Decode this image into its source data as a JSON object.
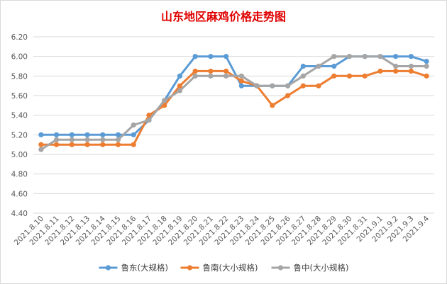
{
  "chart_data": {
    "type": "line",
    "title": "山东地区麻鸡价格走势图",
    "xlabel": "",
    "ylabel": "",
    "categories": [
      "2021.8.10",
      "2021.8.11",
      "2021.8.12",
      "2021.8.13",
      "2021.8.14",
      "2021.8.15",
      "2021.8.16",
      "2021.8.17",
      "2021.8.18",
      "2021.8.19",
      "2021.8.20",
      "2021.8.21",
      "2021.8.22",
      "2021.8.23",
      "2021.8.24",
      "2021.8.25",
      "2021.8.26",
      "2021.8.27",
      "2021.8.28",
      "2021.8.29",
      "2021.8.30",
      "2021.8.31",
      "2021.9.1",
      "2021.9.2",
      "2021.9.3",
      "2021.9.4"
    ],
    "y_ticks": [
      "4.40",
      "4.60",
      "4.80",
      "5.00",
      "5.20",
      "5.40",
      "5.60",
      "5.80",
      "6.00",
      "6.20"
    ],
    "ylim": [
      4.4,
      6.2
    ],
    "grid": true,
    "legend_position": "bottom",
    "series": [
      {
        "name": "鲁东(大规格)",
        "color": "#5b9bd5",
        "values": [
          5.2,
          5.2,
          5.2,
          5.2,
          5.2,
          5.2,
          5.2,
          5.35,
          5.55,
          5.8,
          6.0,
          6.0,
          6.0,
          5.7,
          5.7,
          5.7,
          5.7,
          5.9,
          5.9,
          5.9,
          6.0,
          6.0,
          6.0,
          6.0,
          6.0,
          5.95
        ]
      },
      {
        "name": "鲁南(大小规格)",
        "color": "#ed7d31",
        "values": [
          5.1,
          5.1,
          5.1,
          5.1,
          5.1,
          5.1,
          5.1,
          5.4,
          5.5,
          5.7,
          5.85,
          5.85,
          5.85,
          5.75,
          5.7,
          5.5,
          5.6,
          5.7,
          5.7,
          5.8,
          5.8,
          5.8,
          5.85,
          5.85,
          5.85,
          5.8
        ]
      },
      {
        "name": "鲁中(大小规格)",
        "color": "#a5a5a5",
        "values": [
          5.05,
          5.15,
          5.15,
          5.15,
          5.15,
          5.15,
          5.3,
          5.35,
          5.55,
          5.65,
          5.8,
          5.8,
          5.8,
          5.8,
          5.7,
          5.7,
          5.7,
          5.8,
          5.9,
          6.0,
          6.0,
          6.0,
          6.0,
          5.9,
          5.9,
          5.9
        ]
      }
    ]
  }
}
